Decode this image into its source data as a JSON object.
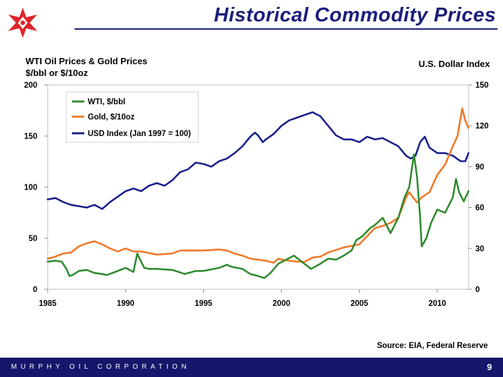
{
  "slide": {
    "title": "Historical Commodity Prices",
    "company": "MURPHY OIL CORPORATION",
    "page_number": "9",
    "brand_color": "#1b1e7a",
    "logo_color": "#e1252a"
  },
  "chart_data": {
    "type": "line",
    "title": "WTI Oil Prices & Gold Prices",
    "ylabel": "$/bbl or $/10oz",
    "y2label": "U.S. Dollar Index",
    "source": "Source: EIA, Federal Reserve",
    "xlim": [
      1985,
      2012
    ],
    "ylim": [
      0,
      200
    ],
    "y2lim": [
      0,
      150
    ],
    "x_ticks": [
      1985,
      1990,
      1995,
      2000,
      2005,
      2010
    ],
    "y_ticks": [
      0,
      50,
      100,
      150,
      200
    ],
    "y2_ticks": [
      0,
      30,
      60,
      90,
      120,
      150
    ],
    "legend": [
      "WTI, $/bbl",
      "Gold, $/10oz",
      "USD Index (Jan 1997 = 100)"
    ],
    "legend_position": "top-left",
    "series": [
      {
        "name": "WTI, $/bbl",
        "axis": "left",
        "color": "#2e8b2e",
        "x": [
          1985.0,
          1985.5,
          1985.9,
          1986.2,
          1986.4,
          1986.6,
          1987.0,
          1987.5,
          1988.0,
          1988.5,
          1988.8,
          1989.5,
          1990.0,
          1990.5,
          1990.75,
          1990.9,
          1991.2,
          1991.5,
          1992.0,
          1993.0,
          1993.8,
          1994.5,
          1995.0,
          1996.0,
          1996.5,
          1996.8,
          1997.5,
          1998.0,
          1998.5,
          1998.9,
          1999.3,
          1999.8,
          2000.3,
          2000.8,
          2001.3,
          2001.9,
          2002.5,
          2003.0,
          2003.5,
          2004.0,
          2004.5,
          2004.8,
          2005.2,
          2005.7,
          2006.0,
          2006.5,
          2007.0,
          2007.5,
          2007.9,
          2008.2,
          2008.5,
          2008.7,
          2008.9,
          2009.0,
          2009.3,
          2009.6,
          2010.0,
          2010.5,
          2011.0,
          2011.2,
          2011.4,
          2011.7,
          2012.0
        ],
        "values": [
          27,
          28,
          27,
          20,
          13,
          14,
          18,
          19,
          16,
          15,
          14,
          18,
          21,
          17,
          35,
          30,
          21,
          20,
          20,
          19,
          15,
          18,
          18,
          21,
          24,
          22,
          20,
          15,
          13,
          11,
          16,
          25,
          29,
          33,
          27,
          20,
          25,
          30,
          29,
          33,
          38,
          48,
          52,
          60,
          63,
          70,
          55,
          70,
          90,
          100,
          132,
          110,
          70,
          42,
          50,
          65,
          78,
          75,
          90,
          108,
          95,
          86,
          96
        ]
      },
      {
        "name": "Gold, $/10oz",
        "axis": "left",
        "color": "#f07828",
        "x": [
          1985.0,
          1985.5,
          1986.0,
          1986.5,
          1987.0,
          1987.5,
          1988.0,
          1988.5,
          1989.0,
          1989.5,
          1990.0,
          1990.5,
          1991.0,
          1992.0,
          1993.0,
          1993.5,
          1994.0,
          1995.0,
          1996.0,
          1996.5,
          1997.0,
          1997.5,
          1998.0,
          1999.0,
          1999.5,
          1999.8,
          2000.0,
          2001.0,
          2001.5,
          2002.0,
          2002.5,
          2003.0,
          2004.0,
          2005.0,
          2006.0,
          2006.5,
          2007.0,
          2007.5,
          2008.0,
          2008.2,
          2008.7,
          2009.0,
          2009.5,
          2010.0,
          2010.5,
          2011.0,
          2011.3,
          2011.6,
          2011.8,
          2012.0
        ],
        "values": [
          30,
          32,
          35,
          36,
          42,
          45,
          47,
          44,
          40,
          37,
          40,
          37,
          37,
          34,
          35,
          38,
          38,
          38,
          39,
          38,
          35,
          33,
          30,
          28,
          26,
          30,
          29,
          27,
          27,
          31,
          32,
          36,
          41,
          44,
          60,
          62,
          65,
          70,
          90,
          95,
          85,
          90,
          95,
          112,
          122,
          140,
          150,
          177,
          165,
          158
        ]
      },
      {
        "name": "USD Index (Jan 1997 = 100)",
        "axis": "right",
        "color": "#1a1f8c",
        "x": [
          1985.0,
          1985.5,
          1986.0,
          1986.5,
          1987.0,
          1987.5,
          1988.0,
          1988.5,
          1989.0,
          1989.5,
          1990.0,
          1990.5,
          1991.0,
          1991.5,
          1992.0,
          1992.5,
          1993.0,
          1993.5,
          1994.0,
          1994.5,
          1995.0,
          1995.5,
          1996.0,
          1996.5,
          1997.0,
          1997.5,
          1998.0,
          1998.3,
          1998.5,
          1998.8,
          1999.0,
          1999.5,
          2000.0,
          2000.5,
          2001.0,
          2001.5,
          2002.0,
          2002.5,
          2003.0,
          2003.5,
          2004.0,
          2004.5,
          2005.0,
          2005.5,
          2006.0,
          2006.5,
          2007.0,
          2007.5,
          2008.0,
          2008.3,
          2008.6,
          2008.9,
          2009.2,
          2009.5,
          2010.0,
          2010.5,
          2011.0,
          2011.5,
          2011.8,
          2012.0
        ],
        "values": [
          66,
          67,
          64,
          62,
          61,
          60,
          62,
          59,
          64,
          68,
          72,
          74,
          72,
          76,
          78,
          76,
          80,
          86,
          88,
          93,
          92,
          90,
          94,
          96,
          100,
          105,
          112,
          115,
          113,
          108,
          110,
          114,
          120,
          124,
          126,
          128,
          130,
          127,
          120,
          113,
          110,
          110,
          108,
          112,
          110,
          111,
          108,
          105,
          98,
          96,
          98,
          108,
          112,
          104,
          100,
          100,
          98,
          94,
          94,
          100
        ]
      }
    ]
  }
}
